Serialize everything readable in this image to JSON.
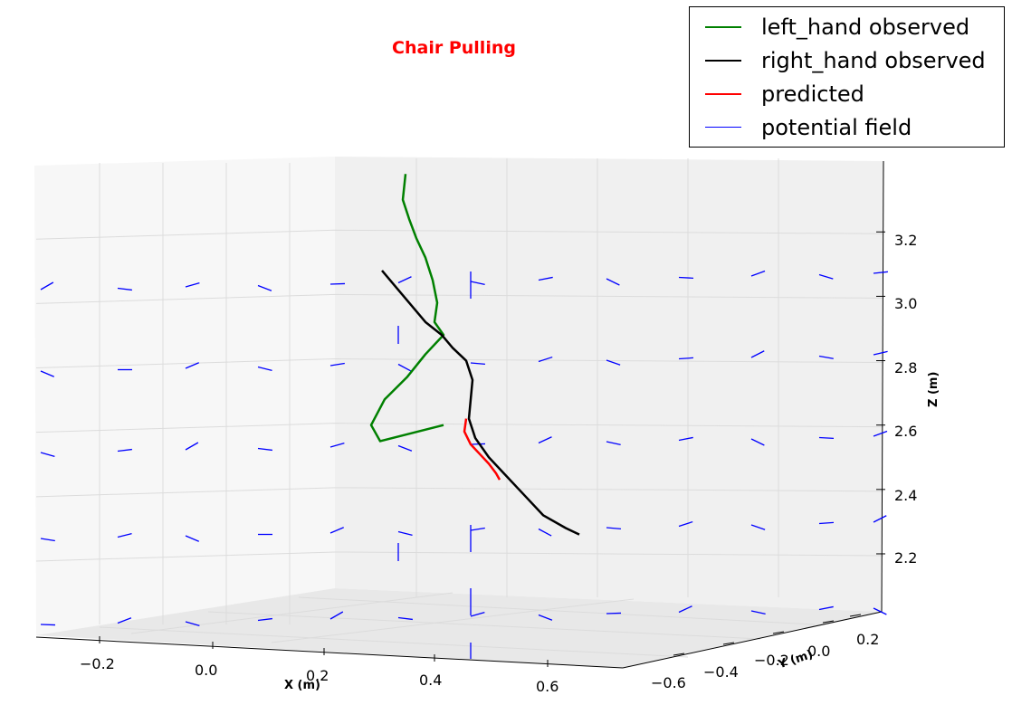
{
  "chart_data": {
    "type": "line",
    "projection": "3d",
    "title": "Chair Pulling",
    "xlabel": "X (m)",
    "ylabel": "Y (m)",
    "zlabel": "Z (m)",
    "x_ticks": [
      "−0.2",
      "0.0",
      "0.2",
      "0.4",
      "0.6"
    ],
    "y_ticks": [
      "−0.6",
      "−0.4",
      "−0.2",
      "0.0",
      "0.2"
    ],
    "z_ticks": [
      "2.2",
      "2.4",
      "2.6",
      "2.8",
      "3.0",
      "3.2"
    ],
    "zlim": [
      2.02,
      3.42
    ],
    "grid": true,
    "legend_position": "top-right",
    "legend": [
      {
        "label": "left_hand observed",
        "color": "#008000",
        "width": 2.5
      },
      {
        "label": "right_hand observed",
        "color": "#000000",
        "width": 2.5
      },
      {
        "label": "predicted",
        "color": "#ff0000",
        "width": 2.5
      },
      {
        "label": "potential field",
        "color": "#0000ff",
        "width": 1.3
      }
    ],
    "series": [
      {
        "name": "left_hand observed",
        "color": "#008000",
        "z": [
          3.38,
          3.3,
          3.24,
          3.18,
          3.12,
          3.05,
          2.98,
          2.92,
          2.88,
          2.82,
          2.75,
          2.68,
          2.6,
          2.55,
          2.6
        ]
      },
      {
        "name": "right_hand observed",
        "color": "#000000",
        "z": [
          3.08,
          3.02,
          2.97,
          2.92,
          2.88,
          2.84,
          2.8,
          2.74,
          2.68,
          2.62,
          2.56,
          2.5,
          2.44,
          2.38,
          2.32,
          2.28,
          2.26
        ]
      },
      {
        "name": "predicted",
        "color": "#ff0000",
        "z": [
          2.62,
          2.58,
          2.54,
          2.51,
          2.48,
          2.45,
          2.43
        ]
      }
    ]
  }
}
